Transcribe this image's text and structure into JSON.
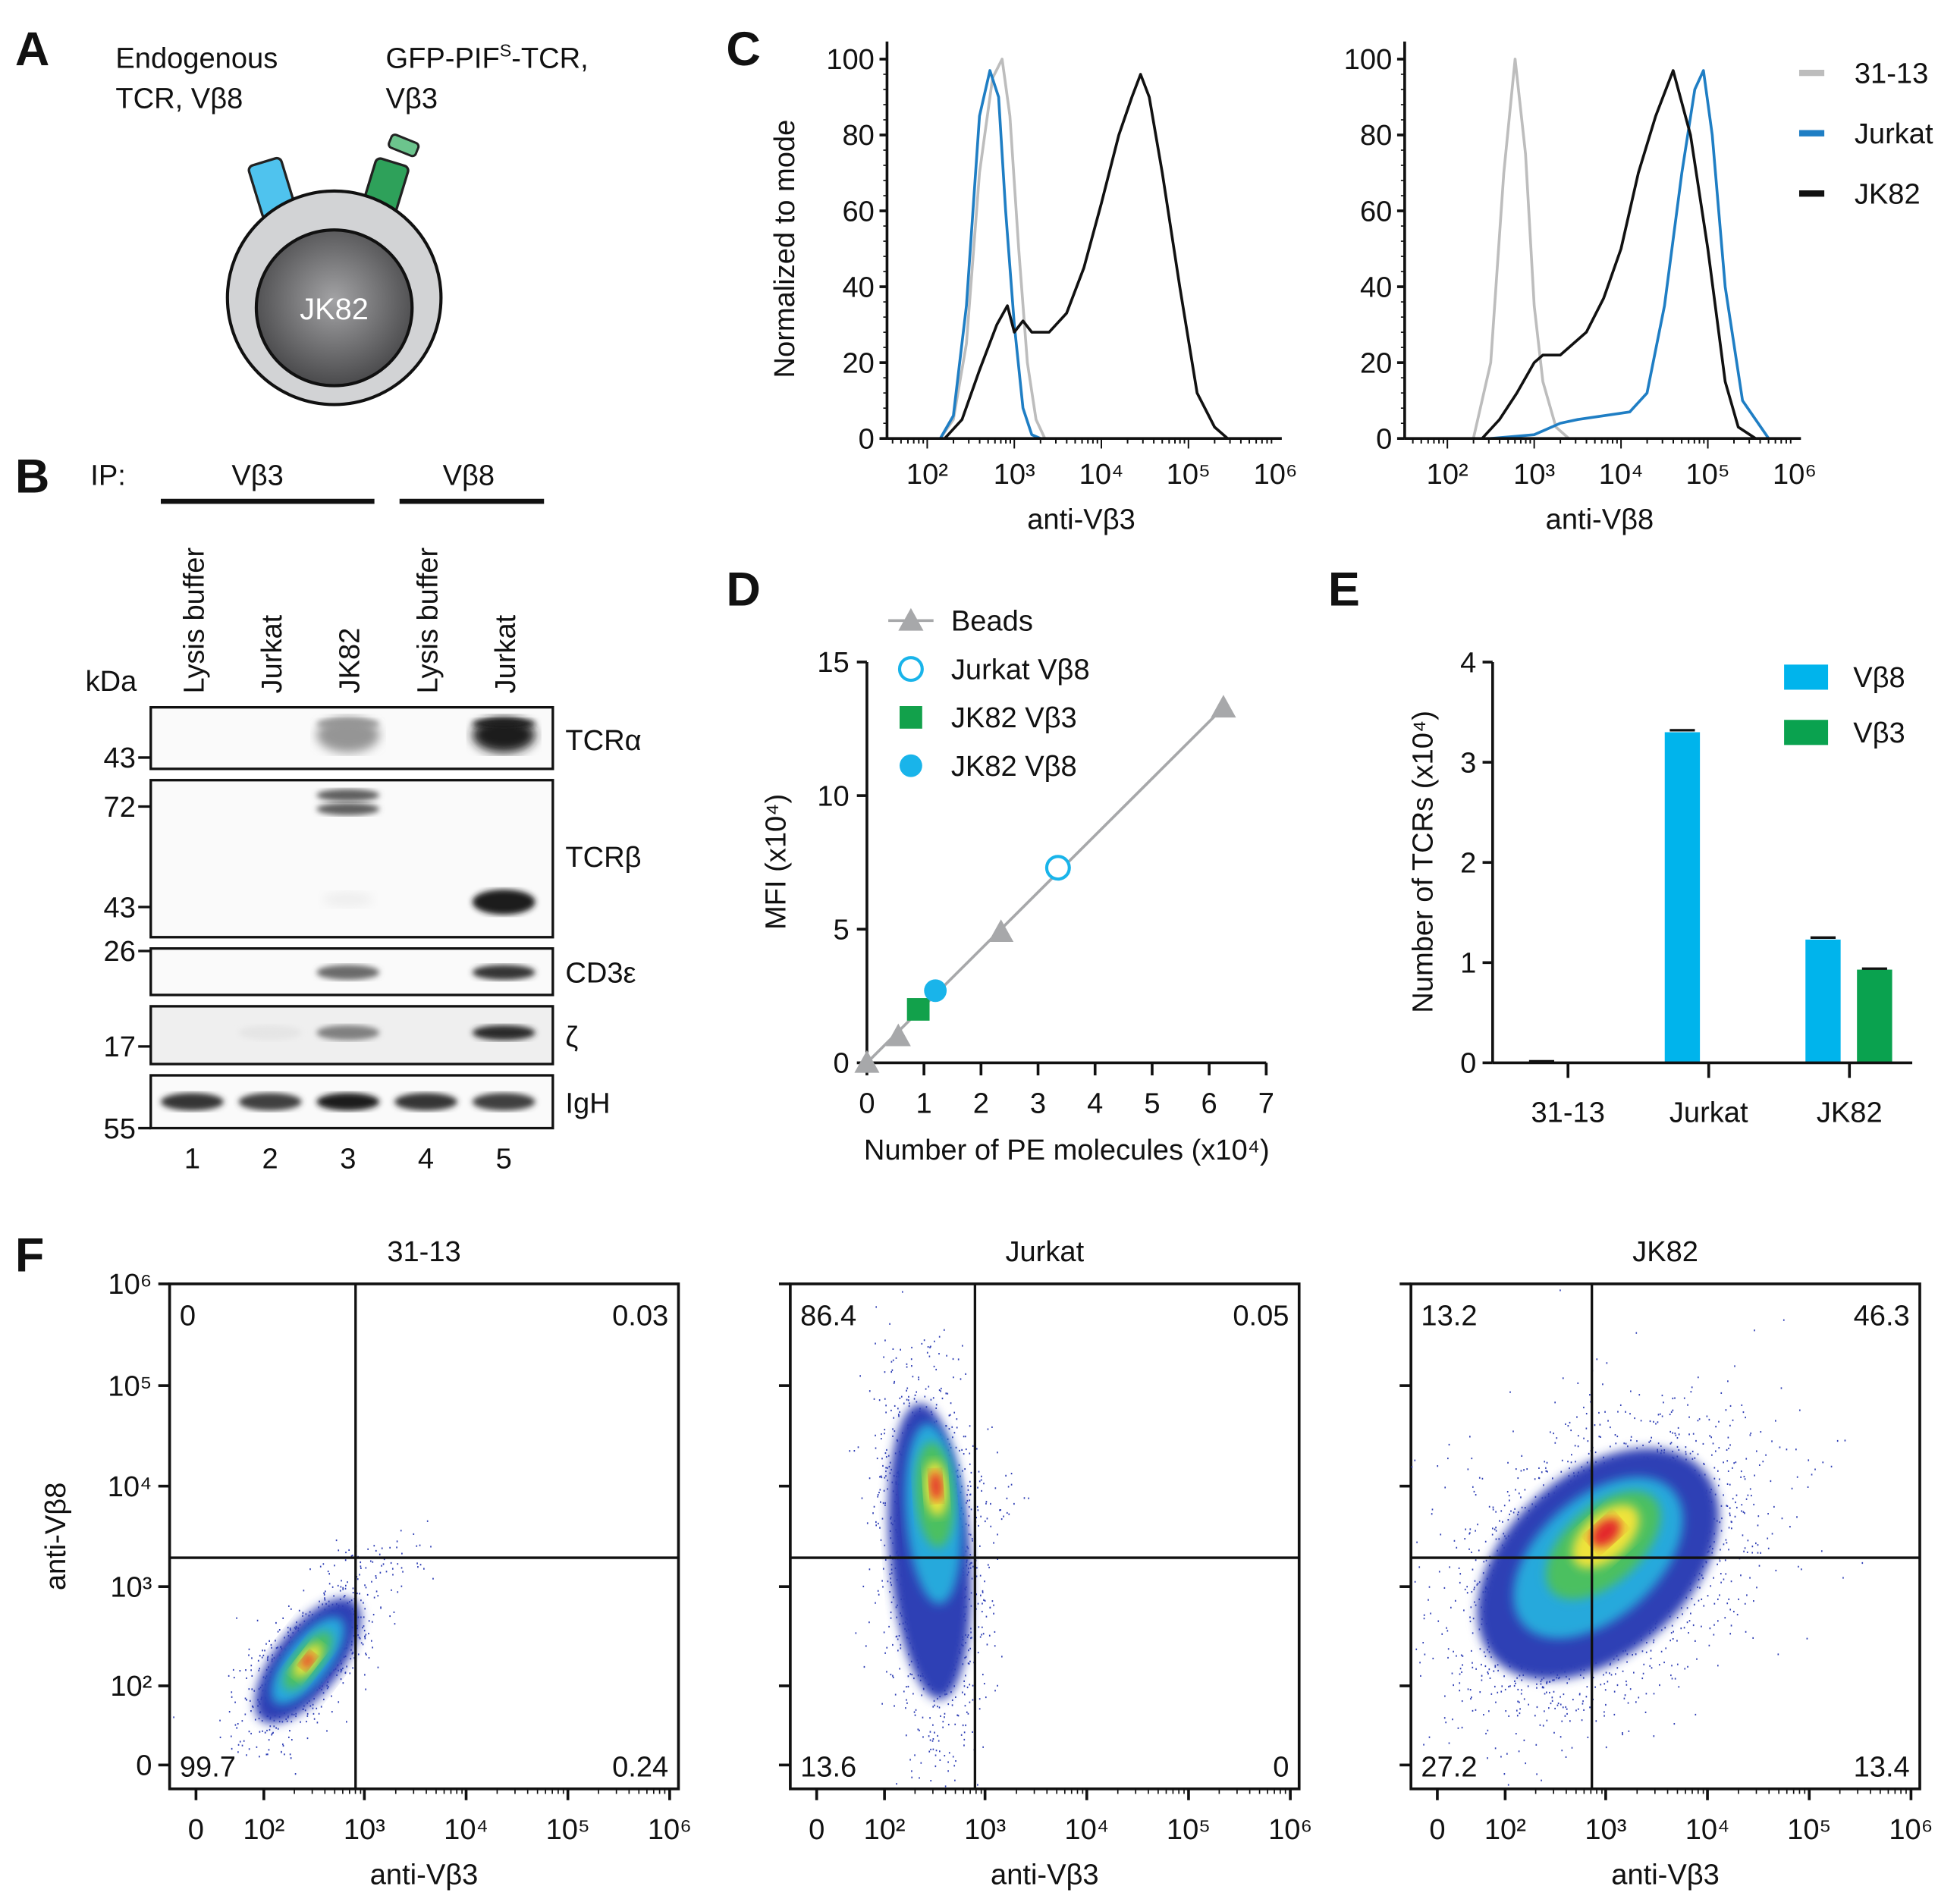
{
  "panel_a": {
    "label": "A",
    "endogenous_line1": "Endogenous",
    "endogenous_line2": "TCR, Vβ8",
    "construct_pre": "GFP-PIF",
    "construct_sup": "S",
    "construct_post": "-TCR,",
    "construct_line2": "Vβ3",
    "cell_label": "JK82",
    "colors": {
      "endogenous": "#4fc3ee",
      "construct": "#2ea15a",
      "membrane": "#d2d3d5"
    }
  },
  "panel_b": {
    "label": "B",
    "ip_label": "IP:",
    "groups": [
      {
        "label": "Vβ3"
      },
      {
        "label": "Vβ8"
      }
    ],
    "lanes": [
      {
        "name": "Lysis buffer",
        "number": "1"
      },
      {
        "name": "Jurkat",
        "number": "2"
      },
      {
        "name": "JK82",
        "number": "3"
      },
      {
        "name": "Lysis buffer",
        "number": "4"
      },
      {
        "name": "Jurkat",
        "number": "5"
      }
    ],
    "kda_label": "kDa",
    "markers": [
      "43",
      "72",
      "43",
      "26",
      "17",
      "55"
    ],
    "blots": [
      {
        "label": "TCRα",
        "bands": [
          0,
          0,
          0.4,
          0,
          0.95
        ]
      },
      {
        "label": "TCRβ",
        "bands": [
          0,
          0,
          0.65,
          0,
          0.95
        ]
      },
      {
        "label": "CD3ε",
        "bands": [
          0,
          0,
          0.6,
          0,
          0.85
        ]
      },
      {
        "label": "ζ",
        "bands": [
          0,
          0.03,
          0.5,
          0,
          0.9
        ]
      },
      {
        "label": "IgH",
        "bands": [
          0.85,
          0.8,
          0.95,
          0.85,
          0.8
        ]
      }
    ]
  },
  "labels": {
    "C": "C",
    "D": "D",
    "E": "E",
    "F": "F"
  },
  "chart_data": [
    {
      "id": "C-left",
      "type": "line",
      "xscale": "log10",
      "xlabel": "anti-Vβ3",
      "ylabel": "Normalized to mode",
      "xticks": [
        "10²",
        "10³",
        "10⁴",
        "10⁵",
        "10⁶"
      ],
      "yticks": [
        "0",
        "20",
        "40",
        "60",
        "80",
        "100"
      ],
      "ylim": [
        0,
        100
      ],
      "series": [
        {
          "name": "31-13",
          "color": "#bdbdbd",
          "points": [
            [
              2.15,
              0
            ],
            [
              2.3,
              5
            ],
            [
              2.45,
              25
            ],
            [
              2.6,
              70
            ],
            [
              2.75,
              95
            ],
            [
              2.86,
              100
            ],
            [
              2.95,
              85
            ],
            [
              3.05,
              50
            ],
            [
              3.15,
              20
            ],
            [
              3.25,
              5
            ],
            [
              3.35,
              0
            ]
          ]
        },
        {
          "name": "Jurkat",
          "color": "#1f7ec4",
          "points": [
            [
              2.15,
              0
            ],
            [
              2.3,
              6
            ],
            [
              2.45,
              35
            ],
            [
              2.6,
              85
            ],
            [
              2.72,
              97
            ],
            [
              2.82,
              90
            ],
            [
              2.9,
              60
            ],
            [
              3.0,
              30
            ],
            [
              3.1,
              8
            ],
            [
              3.2,
              1
            ],
            [
              3.3,
              0
            ]
          ]
        },
        {
          "name": "JK82",
          "color": "#111111",
          "points": [
            [
              2.2,
              0
            ],
            [
              2.4,
              5
            ],
            [
              2.6,
              18
            ],
            [
              2.8,
              30
            ],
            [
              2.92,
              35
            ],
            [
              3.0,
              28
            ],
            [
              3.1,
              31
            ],
            [
              3.2,
              28
            ],
            [
              3.4,
              28
            ],
            [
              3.6,
              33
            ],
            [
              3.8,
              45
            ],
            [
              4.0,
              62
            ],
            [
              4.2,
              80
            ],
            [
              4.35,
              90
            ],
            [
              4.45,
              96
            ],
            [
              4.55,
              90
            ],
            [
              4.7,
              70
            ],
            [
              4.9,
              40
            ],
            [
              5.1,
              12
            ],
            [
              5.3,
              3
            ],
            [
              5.45,
              0
            ]
          ]
        }
      ]
    },
    {
      "id": "C-right",
      "type": "line",
      "xscale": "log10",
      "xlabel": "anti-Vβ8",
      "ylabel": "",
      "xticks": [
        "10²",
        "10³",
        "10⁴",
        "10⁵",
        "10⁶"
      ],
      "yticks": [
        "0",
        "20",
        "40",
        "60",
        "80",
        "100"
      ],
      "ylim": [
        0,
        100
      ],
      "legend": "top-right",
      "series": [
        {
          "name": "31-13",
          "color": "#bdbdbd",
          "points": [
            [
              2.3,
              0
            ],
            [
              2.5,
              20
            ],
            [
              2.65,
              70
            ],
            [
              2.78,
              100
            ],
            [
              2.9,
              75
            ],
            [
              3.0,
              35
            ],
            [
              3.1,
              15
            ],
            [
              3.25,
              3
            ],
            [
              3.4,
              0
            ]
          ]
        },
        {
          "name": "Jurkat",
          "color": "#1f7ec4",
          "points": [
            [
              2.5,
              0
            ],
            [
              3.0,
              1
            ],
            [
              3.3,
              4
            ],
            [
              3.5,
              5
            ],
            [
              3.8,
              6
            ],
            [
              4.1,
              7
            ],
            [
              4.3,
              12
            ],
            [
              4.5,
              35
            ],
            [
              4.7,
              70
            ],
            [
              4.85,
              92
            ],
            [
              4.95,
              97
            ],
            [
              5.05,
              80
            ],
            [
              5.2,
              40
            ],
            [
              5.4,
              10
            ],
            [
              5.7,
              0
            ]
          ]
        },
        {
          "name": "JK82",
          "color": "#111111",
          "points": [
            [
              2.4,
              0
            ],
            [
              2.6,
              5
            ],
            [
              2.8,
              12
            ],
            [
              3.0,
              20
            ],
            [
              3.1,
              22
            ],
            [
              3.3,
              22
            ],
            [
              3.6,
              28
            ],
            [
              3.8,
              37
            ],
            [
              4.0,
              50
            ],
            [
              4.2,
              70
            ],
            [
              4.4,
              85
            ],
            [
              4.6,
              97
            ],
            [
              4.8,
              80
            ],
            [
              5.0,
              50
            ],
            [
              5.2,
              15
            ],
            [
              5.35,
              3
            ],
            [
              5.55,
              0
            ]
          ]
        }
      ]
    },
    {
      "id": "D",
      "type": "scatter",
      "xlabel": "Number of PE molecules (x10⁴)",
      "ylabel": "MFI (x10⁴)",
      "xlim": [
        0,
        7
      ],
      "ylim": [
        0,
        15
      ],
      "xticks": [
        "0",
        "1",
        "2",
        "3",
        "4",
        "5",
        "6",
        "7"
      ],
      "yticks": [
        "0",
        "5",
        "10",
        "15"
      ],
      "series": [
        {
          "name": "Beads",
          "marker": "triangle",
          "color": "#a7a8aa",
          "fit_line": true,
          "points": [
            [
              0,
              0
            ],
            [
              0.55,
              1.0
            ],
            [
              2.35,
              4.9
            ],
            [
              6.25,
              13.3
            ]
          ]
        },
        {
          "name": "Jurkat Vβ8",
          "marker": "open-circle",
          "color": "#19b4ea",
          "points": [
            [
              3.35,
              7.3
            ]
          ]
        },
        {
          "name": "JK82 Vβ3",
          "marker": "square",
          "color": "#12a14b",
          "points": [
            [
              0.9,
              2.0
            ]
          ]
        },
        {
          "name": "JK82 Vβ8",
          "marker": "circle",
          "color": "#19b4ea",
          "points": [
            [
              1.2,
              2.7
            ]
          ]
        }
      ]
    },
    {
      "id": "E",
      "type": "bar",
      "ylabel": "Number of TCRs (x10⁴)",
      "ylim": [
        0,
        4
      ],
      "yticks": [
        "0",
        "1",
        "2",
        "3",
        "4"
      ],
      "categories": [
        "31-13",
        "Jurkat",
        "JK82"
      ],
      "series": [
        {
          "name": "Vβ8",
          "color": "#00b4ec",
          "values": [
            0.01,
            3.3,
            1.23
          ],
          "errors": [
            0.005,
            0.02,
            0.02
          ]
        },
        {
          "name": "Vβ3",
          "color": "#0aa24f",
          "values": [
            0,
            0,
            0.93
          ],
          "errors": [
            0,
            0,
            0.01
          ]
        }
      ],
      "legend": "top-right"
    },
    {
      "id": "F-31-13",
      "type": "scatter",
      "title": "31-13",
      "xlabel": "anti-Vβ3",
      "ylabel": "anti-Vβ8",
      "xticks": [
        "0",
        "10²",
        "10³",
        "10⁴",
        "10⁵",
        "10⁶"
      ],
      "yticks": [
        "10⁶",
        "10⁵",
        "10⁴",
        "10³",
        "10²",
        "0"
      ],
      "quadrants": {
        "top_left": "0",
        "top_right": "0.03",
        "bottom_left": "99.7",
        "bottom_right": "0.24"
      }
    },
    {
      "id": "F-Jurkat",
      "type": "scatter",
      "title": "Jurkat",
      "xlabel": "anti-Vβ3",
      "ylabel": "",
      "xticks": [
        "0",
        "10²",
        "10³",
        "10⁴",
        "10⁵",
        "10⁶"
      ],
      "quadrants": {
        "top_left": "86.4",
        "top_right": "0.05",
        "bottom_left": "13.6",
        "bottom_right": "0"
      }
    },
    {
      "id": "F-JK82",
      "type": "scatter",
      "title": "JK82",
      "xlabel": "anti-Vβ3",
      "ylabel": "",
      "xticks": [
        "0",
        "10²",
        "10³",
        "10⁴",
        "10⁵",
        "10⁶"
      ],
      "quadrants": {
        "top_left": "13.2",
        "top_right": "46.3",
        "bottom_left": "27.2",
        "bottom_right": "13.4"
      }
    }
  ]
}
